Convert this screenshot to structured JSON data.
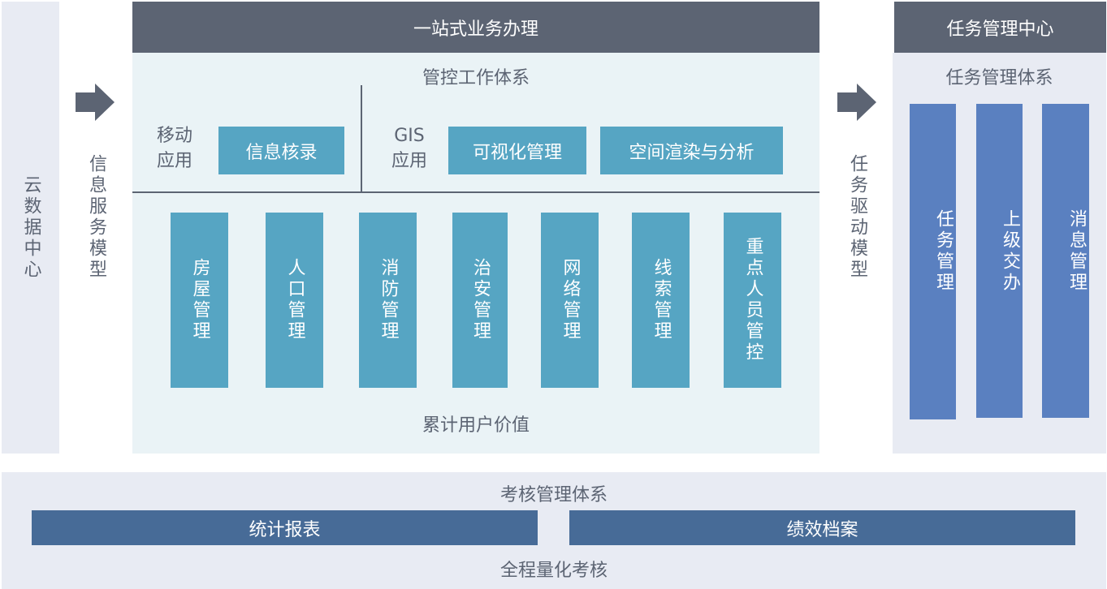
{
  "colors": {
    "header": "#5c6473",
    "panel_light_blue": "#eaf3f6",
    "panel_gray": "#e8ebf3",
    "teal_box": "#56a5c3",
    "blue_bar": "#5a80c0",
    "navy_bar": "#476b97"
  },
  "left": {
    "label": "云数据中心",
    "model": "信息服务模型"
  },
  "main": {
    "title": "一站式业务办理",
    "subtitle": "管控工作体系",
    "mobile": {
      "label": "移动应用",
      "box": "信息核录"
    },
    "gis": {
      "label": "GIS应用",
      "boxes": [
        "可视化管理",
        "空间渲染与分析"
      ]
    },
    "columns": [
      "房屋管理",
      "人口管理",
      "消防管理",
      "治安管理",
      "网络管理",
      "线索管理",
      "重点人员管控"
    ],
    "footer": "累计用户价值"
  },
  "middle": {
    "model": "任务驱动模型"
  },
  "right": {
    "title": "任务管理中心",
    "subtitle": "任务管理体系",
    "bars": [
      "任务管理",
      "上级交办",
      "消息管理"
    ]
  },
  "bottom": {
    "title": "考核管理体系",
    "bars": [
      "统计报表",
      "绩效档案"
    ],
    "footer": "全程量化考核"
  }
}
